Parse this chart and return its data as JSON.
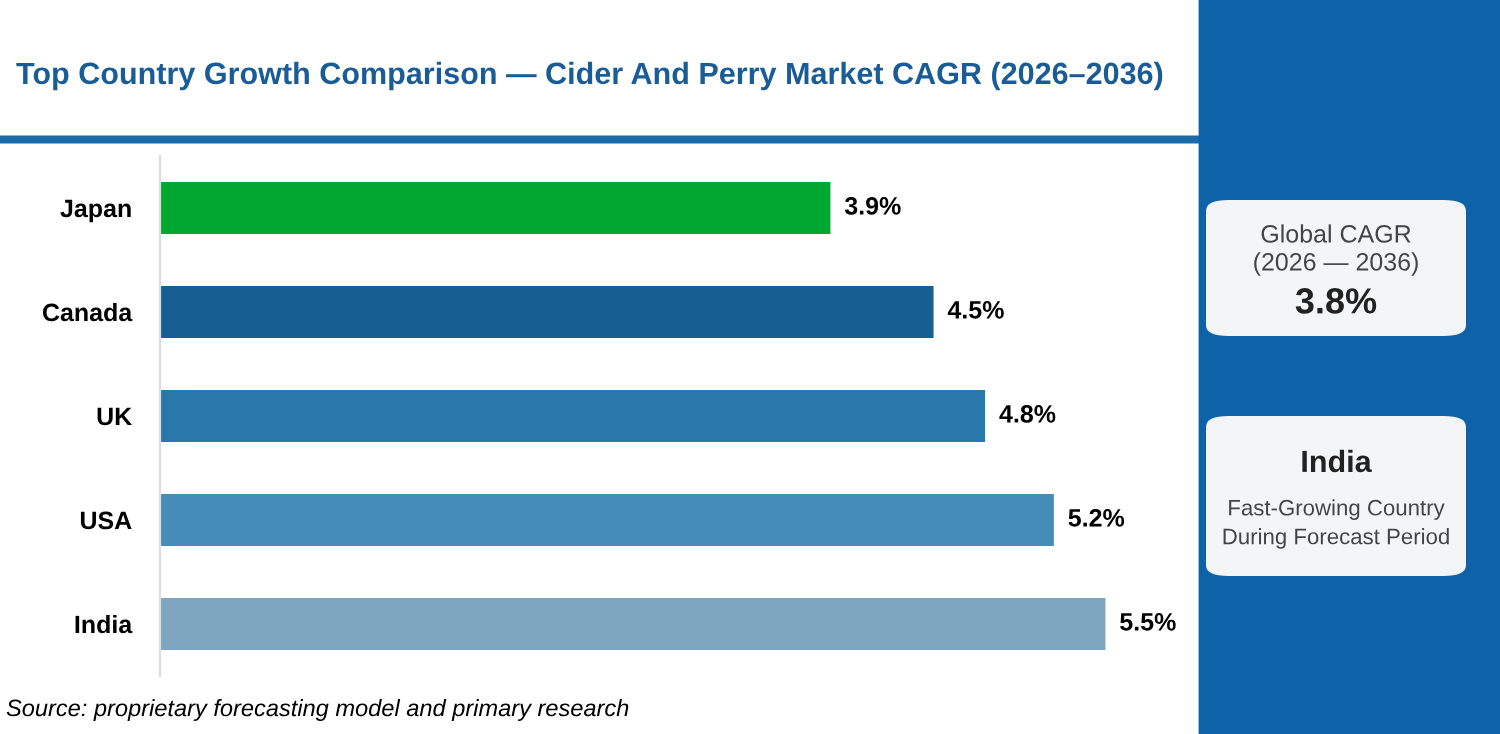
{
  "chart_data": [
    {
      "type": "bar",
      "orientation": "horizontal",
      "title": "Top Country Growth Comparison — Cider And Perry Market CAGR (2026–2036)",
      "categories": [
        "Japan",
        "Canada",
        "UK",
        "USA",
        "India"
      ],
      "values": [
        3.9,
        4.5,
        4.8,
        5.2,
        5.5
      ],
      "colors": [
        "#00a832",
        "#175f92",
        "#2878ab",
        "#468cb8",
        "#7ea6c0"
      ],
      "value_labels": [
        "3.9%",
        "4.5%",
        "4.8%",
        "5.2%",
        "5.5%"
      ],
      "grid": false,
      "legend": false,
      "annotations": [
        "Source: proprietary forecasting model and primary research"
      ]
    },
    {
      "type": "other",
      "annotations": [
        "Global CAGR",
        "(2026 — 2036)",
        "3.8%",
        "India",
        "Fast-Growing Country\nDuring Forecast Period"
      ]
    }
  ]
}
